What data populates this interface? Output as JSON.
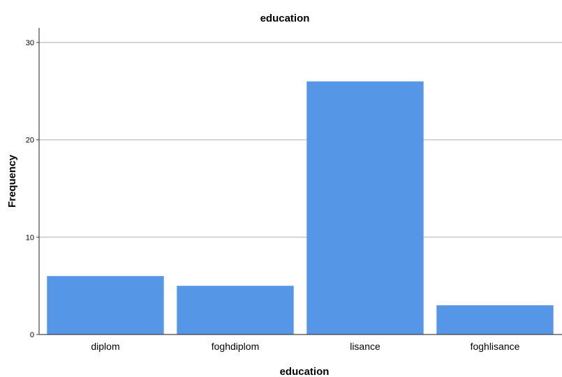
{
  "chart_data": {
    "type": "bar",
    "title": "education",
    "xlabel": "education",
    "ylabel": "Frequency",
    "categories": [
      "diplom",
      "foghdiplom",
      "lisance",
      "foghlisance"
    ],
    "values": [
      6,
      5,
      26,
      3
    ],
    "ylim": [
      0,
      31.5
    ],
    "yticks": [
      0,
      10,
      20,
      30
    ],
    "grid": true,
    "bar_color": "#5596e6",
    "grid_color": "#c8c8c8",
    "axis_color": "#444444"
  }
}
